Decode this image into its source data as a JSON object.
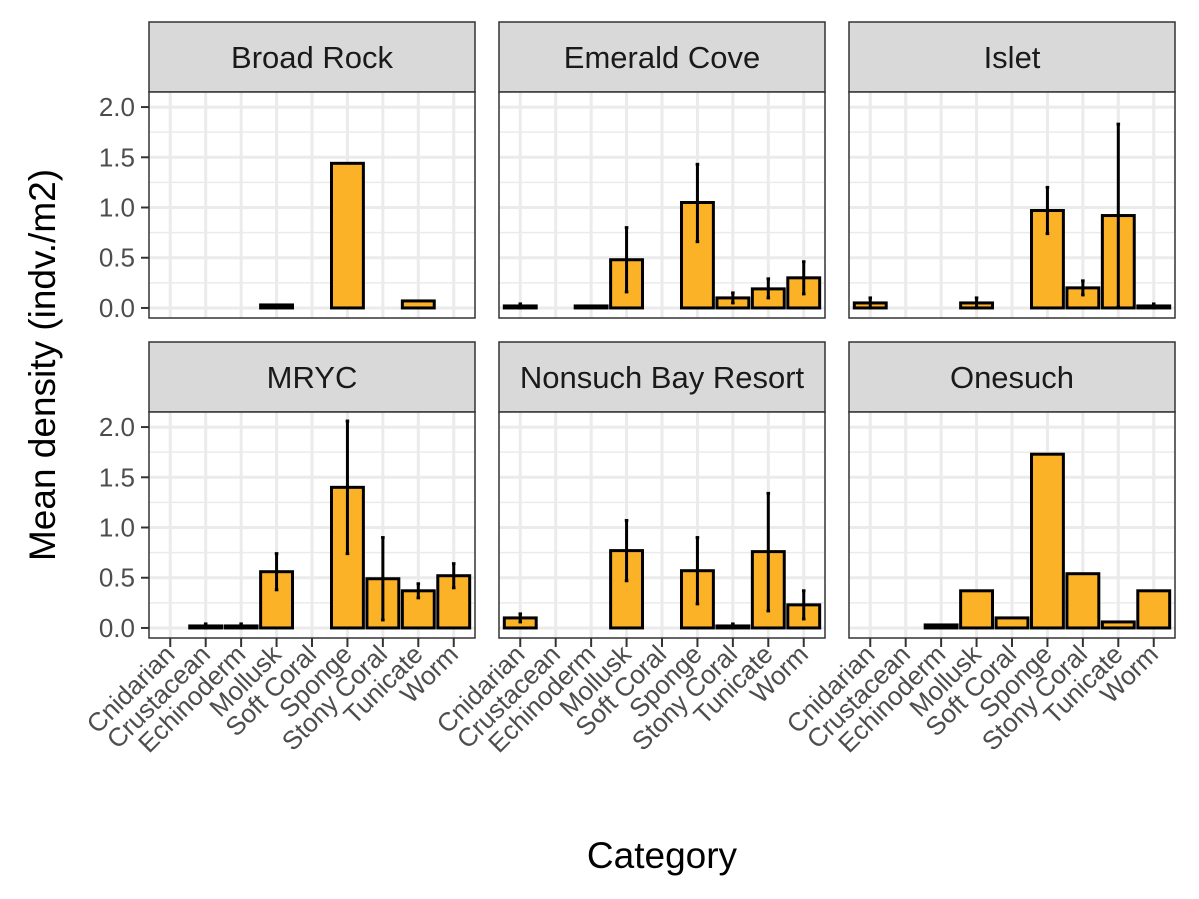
{
  "chart_data": {
    "type": "bar",
    "facet_layout": "3 columns x 2 rows, shared axes",
    "xlabel": "Category",
    "ylabel": "Mean density (indv./m2)",
    "ylim": [
      -0.1,
      2.15
    ],
    "yticks": [
      0.0,
      0.5,
      1.0,
      1.5,
      2.0
    ],
    "ytick_labels": [
      "0.0",
      "0.5",
      "1.0",
      "1.5",
      "2.0"
    ],
    "categories": [
      "Cnidarian",
      "Crustacean",
      "Echinoderm",
      "Mollusk",
      "Soft Coral",
      "Sponge",
      "Stony Coral",
      "Tunicate",
      "Worm"
    ],
    "grid": true,
    "error_bars": true,
    "colors": {
      "bar_fill": "#fbb226",
      "bar_stroke": "#000000",
      "strip_fill": "#d9d9d9",
      "grid": "#ebebeb",
      "panel_border": "#333333"
    },
    "panels": [
      {
        "title": "Broad Rock",
        "values": [
          null,
          null,
          null,
          0.03,
          null,
          1.44,
          null,
          0.07,
          null
        ],
        "errors": [
          null,
          null,
          null,
          null,
          null,
          null,
          null,
          null,
          null
        ]
      },
      {
        "title": "Emerald Cove",
        "values": [
          0.02,
          null,
          0.02,
          0.48,
          null,
          1.05,
          0.1,
          0.19,
          0.3
        ],
        "errors": [
          [
            0.0,
            0.04
          ],
          null,
          null,
          [
            0.16,
            0.8
          ],
          null,
          [
            0.66,
            1.43
          ],
          [
            0.05,
            0.15
          ],
          [
            0.1,
            0.29
          ],
          [
            0.14,
            0.46
          ]
        ]
      },
      {
        "title": "Islet",
        "values": [
          0.05,
          null,
          null,
          0.05,
          null,
          0.97,
          0.2,
          0.92,
          0.02
        ],
        "errors": [
          [
            0.0,
            0.1
          ],
          null,
          null,
          [
            0.0,
            0.1
          ],
          null,
          [
            0.74,
            1.2
          ],
          [
            0.13,
            0.27
          ],
          [
            0.01,
            1.83
          ],
          [
            0.0,
            0.04
          ]
        ]
      },
      {
        "title": "MRYC",
        "values": [
          null,
          0.02,
          0.02,
          0.56,
          null,
          1.4,
          0.49,
          0.37,
          0.52
        ],
        "errors": [
          null,
          [
            0.0,
            0.04
          ],
          [
            0.0,
            0.04
          ],
          [
            0.38,
            0.74
          ],
          null,
          [
            0.74,
            2.06
          ],
          [
            0.08,
            0.9
          ],
          [
            0.3,
            0.44
          ],
          [
            0.4,
            0.64
          ]
        ]
      },
      {
        "title": "Nonsuch Bay Resort",
        "values": [
          0.1,
          null,
          null,
          0.77,
          null,
          0.57,
          0.02,
          0.76,
          0.23
        ],
        "errors": [
          [
            0.06,
            0.14
          ],
          null,
          null,
          [
            0.47,
            1.07
          ],
          null,
          [
            0.24,
            0.9
          ],
          [
            0.0,
            0.04
          ],
          [
            0.17,
            1.34
          ],
          [
            0.09,
            0.37
          ]
        ]
      },
      {
        "title": "Onesuch",
        "values": [
          null,
          null,
          0.03,
          0.37,
          0.1,
          1.73,
          0.54,
          0.06,
          0.37
        ],
        "errors": [
          null,
          null,
          null,
          null,
          null,
          null,
          null,
          null,
          null
        ]
      }
    ]
  }
}
